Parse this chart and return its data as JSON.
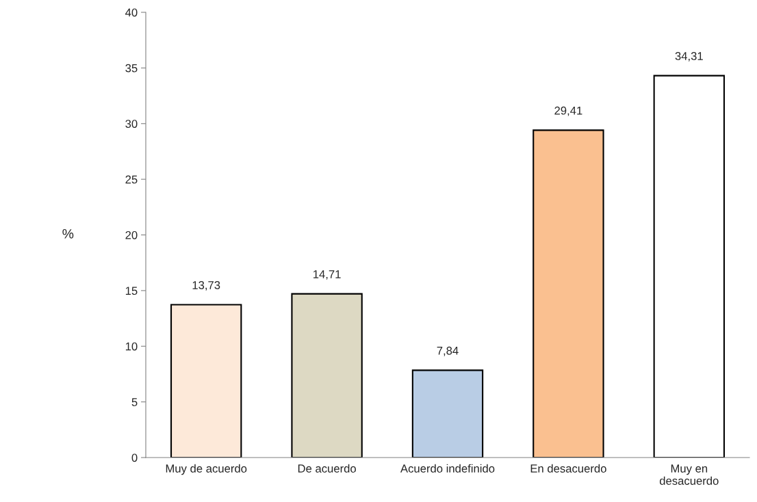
{
  "chart_data": {
    "type": "bar",
    "categories": [
      "Muy de acuerdo",
      "De acuerdo",
      "Acuerdo indefinido",
      "En desacuerdo",
      "Muy en\ndesacuerdo"
    ],
    "values": [
      13.73,
      14.71,
      7.84,
      29.41,
      34.31
    ],
    "colors": [
      "#fde9d9",
      "#ddd9c3",
      "#b9cde5",
      "#fac090",
      "#ffffff"
    ],
    "value_labels": [
      "13,73",
      "14,71",
      "7,84",
      "29,41",
      "34,31"
    ],
    "ylabel": "%",
    "ylim": [
      0,
      40
    ],
    "yticks": [
      0,
      5,
      10,
      15,
      20,
      25,
      30,
      35,
      40
    ],
    "grid": false,
    "legend": false
  }
}
